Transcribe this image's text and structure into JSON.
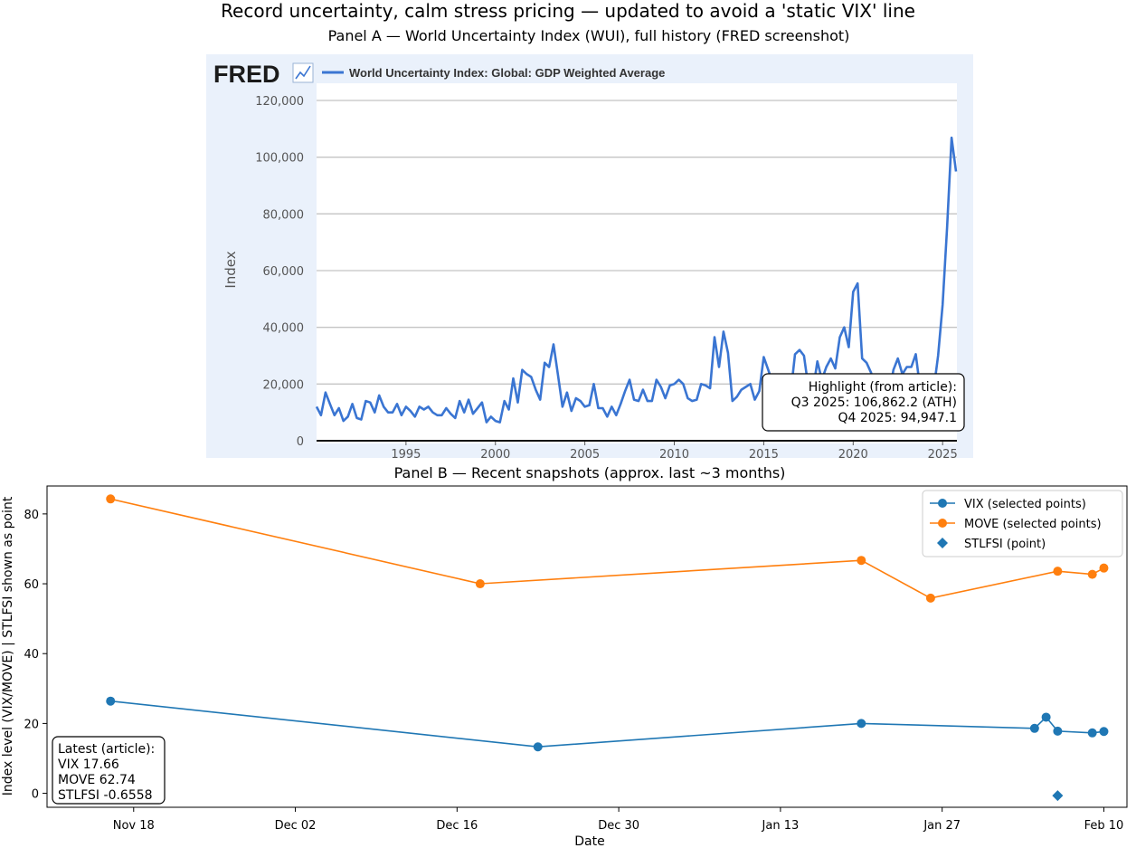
{
  "figure": {
    "suptitle": "Record uncertainty, calm stress pricing — updated to avoid a 'static VIX' line"
  },
  "chart_data": [
    {
      "type": "line",
      "title": "Panel A — World Uncertainty Index (WUI), full history (FRED screenshot)",
      "source_brand": "FRED",
      "legend": "World Uncertainty Index: Global: GDP Weighted Average",
      "xlabel": "",
      "ylabel": "Index",
      "xlim": [
        1990,
        2025.8
      ],
      "ylim": [
        0,
        120000
      ],
      "y_ticks": [
        0,
        20000,
        40000,
        60000,
        80000,
        100000,
        120000
      ],
      "y_tick_labels": [
        "0",
        "20,000",
        "40,000",
        "60,000",
        "80,000",
        "100,000",
        "120,000"
      ],
      "x_ticks": [
        1995,
        2000,
        2005,
        2010,
        2015,
        2020,
        2025
      ],
      "x_tick_labels": [
        "1995",
        "2000",
        "2005",
        "2010",
        "2015",
        "2020",
        "2025"
      ],
      "series": [
        {
          "name": "World Uncertainty Index: Global: GDP Weighted Average",
          "color": "#3a75d2",
          "x_start": 1990.0,
          "x_step": 0.25,
          "values": [
            12000,
            9000,
            17000,
            13000,
            9000,
            11500,
            7000,
            8500,
            13000,
            8000,
            7500,
            14000,
            13500,
            10000,
            16000,
            12000,
            10000,
            10000,
            13000,
            9000,
            12000,
            10500,
            8500,
            12000,
            11000,
            12000,
            10000,
            9000,
            9000,
            11500,
            9500,
            8000,
            14000,
            10000,
            14500,
            9500,
            11500,
            13500,
            6500,
            8500,
            7000,
            6500,
            14000,
            11000,
            22000,
            13500,
            25000,
            23500,
            22500,
            18000,
            14500,
            27500,
            26000,
            34000,
            23000,
            12000,
            17000,
            10500,
            15000,
            14000,
            12000,
            12500,
            20000,
            11500,
            11500,
            8500,
            12000,
            9000,
            13000,
            17500,
            21500,
            14500,
            14000,
            18000,
            14000,
            14000,
            21500,
            19000,
            15000,
            19500,
            20000,
            21500,
            20000,
            15000,
            14000,
            14500,
            20000,
            19500,
            18500,
            36500,
            26000,
            38500,
            31000,
            14000,
            15500,
            18000,
            19000,
            20000,
            14500,
            17500,
            29500,
            25000,
            20500,
            17000,
            19000,
            20000,
            16500,
            30500,
            32000,
            30000,
            18500,
            17500,
            28000,
            21500,
            26000,
            29000,
            25500,
            36500,
            40000,
            33000,
            52500,
            55500,
            29000,
            27500,
            24000,
            17000,
            18000,
            14000,
            16000,
            25000,
            29000,
            23500,
            26000,
            26000,
            30500,
            18000,
            17000,
            15000,
            18000,
            30000,
            48000,
            75000,
            106862.2,
            94947.1
          ]
        }
      ],
      "annotation": {
        "lines": [
          "Highlight (from article):",
          "Q3 2025: 106,862.2 (ATH)",
          "Q4 2025: 94,947.1"
        ]
      },
      "grid": true
    },
    {
      "type": "line",
      "title": "Panel B — Recent snapshots (approx. last ~3 months)",
      "xlabel": "Date",
      "ylabel": "Index level (VIX/MOVE) | STLFSI shown as point",
      "xlim_days_from_nov18": [
        -7.5,
        86
      ],
      "ylim": [
        -4,
        88
      ],
      "x_ticks_days_from_nov18": [
        0,
        14,
        28,
        42,
        56,
        70,
        84
      ],
      "x_tick_labels": [
        "Nov 18",
        "Dec 02",
        "Dec 16",
        "Dec 30",
        "Jan 13",
        "Jan 27",
        "Feb 10"
      ],
      "y_ticks": [
        0,
        20,
        40,
        60,
        80
      ],
      "y_tick_labels": [
        "0",
        "20",
        "40",
        "60",
        "80"
      ],
      "series": [
        {
          "name": "VIX (selected points)",
          "color": "#1f77b4",
          "marker": "circle",
          "dates": [
            "Nov 16",
            "Dec 23",
            "Jan 20",
            "Feb 4",
            "Feb 5",
            "Feb 6",
            "Feb 9",
            "Feb 10"
          ],
          "days": [
            -2,
            35,
            63,
            78,
            79,
            80,
            83,
            84
          ],
          "values": [
            26.4,
            13.3,
            20.0,
            18.6,
            21.8,
            17.8,
            17.3,
            17.7
          ]
        },
        {
          "name": "MOVE (selected points)",
          "color": "#ff7f0e",
          "marker": "circle",
          "dates": [
            "Nov 16",
            "Dec 18",
            "Jan 20",
            "Jan 26",
            "Feb 6",
            "Feb 9",
            "Feb 10"
          ],
          "days": [
            -2,
            30,
            63,
            69,
            80,
            83,
            84
          ],
          "values": [
            84.3,
            60.0,
            66.7,
            55.9,
            63.6,
            62.7,
            64.5
          ]
        },
        {
          "name": "STLFSI (point)",
          "color": "#1f77b4",
          "marker": "diamond",
          "dates": [
            "Feb 6"
          ],
          "days": [
            80
          ],
          "values": [
            -0.6558
          ]
        }
      ],
      "annotation": {
        "lines": [
          "Latest (article):",
          "VIX 17.66",
          "MOVE 62.74",
          "STLFSI -0.6558"
        ]
      },
      "legend_position": "top-right",
      "grid": false
    }
  ]
}
